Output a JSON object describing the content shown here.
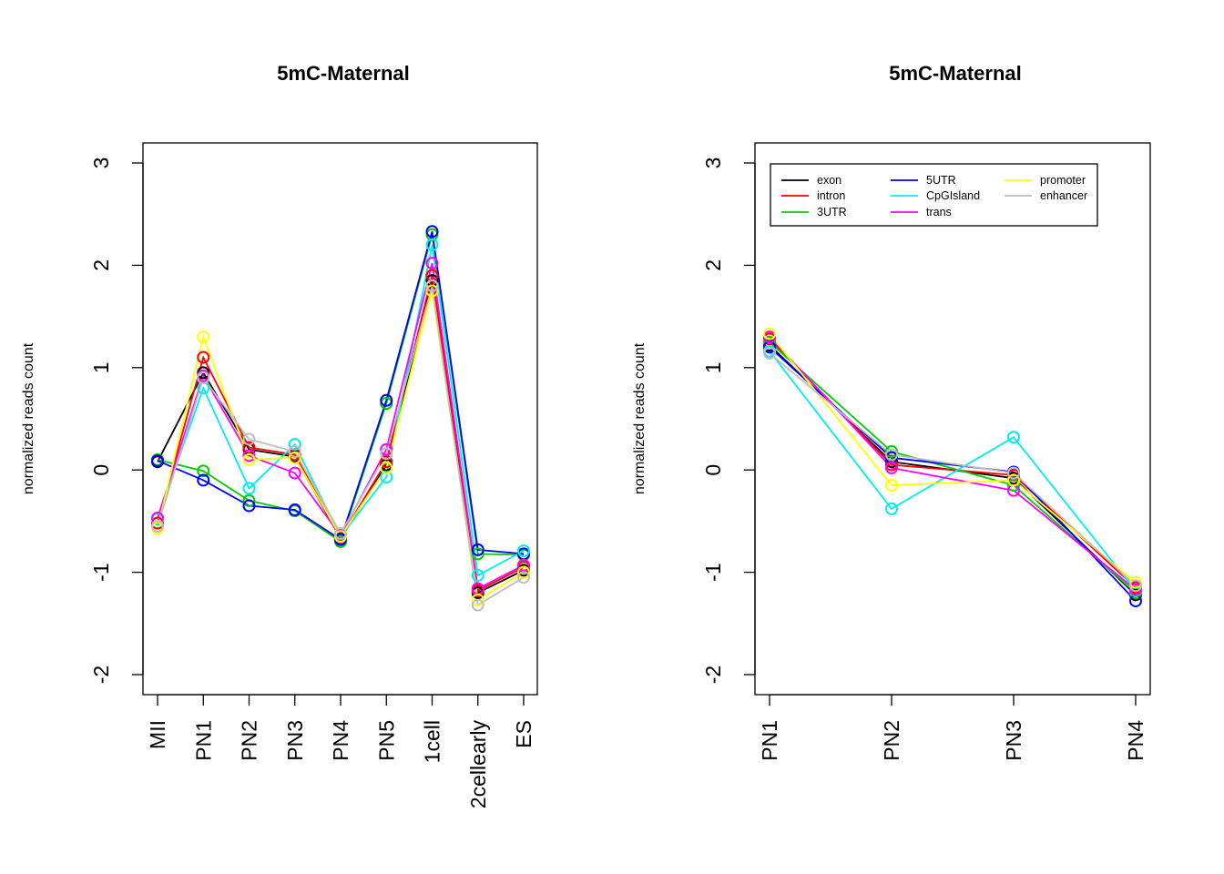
{
  "chart_data": [
    {
      "type": "line",
      "title": "5mC-Maternal",
      "xlabel": "",
      "ylabel": "normalized reads count",
      "categories": [
        "MII",
        "PN1",
        "PN2",
        "PN3",
        "PN4",
        "PN5",
        "1cell",
        "2cellearly",
        "ES"
      ],
      "yticks": [
        "-2",
        "-1",
        "0",
        "1",
        "2",
        "3"
      ],
      "ylim": [
        -2.2,
        3.2
      ],
      "grid": false,
      "series": [
        {
          "name": "exon",
          "color": "#000000",
          "values": [
            0.08,
            0.95,
            0.2,
            0.13,
            -0.67,
            0.05,
            1.85,
            -1.2,
            -0.98
          ]
        },
        {
          "name": "intron",
          "color": "#ff0000",
          "values": [
            -0.52,
            1.1,
            0.22,
            0.15,
            -0.66,
            0.08,
            1.9,
            -1.18,
            -0.95
          ]
        },
        {
          "name": "3UTR",
          "color": "#00cd00",
          "values": [
            0.1,
            -0.01,
            -0.3,
            -0.4,
            -0.7,
            0.65,
            2.3,
            -0.82,
            -0.83
          ]
        },
        {
          "name": "5UTR",
          "color": "#0000ff",
          "values": [
            0.09,
            -0.1,
            -0.35,
            -0.39,
            -0.68,
            0.68,
            2.33,
            -0.78,
            -0.82
          ]
        },
        {
          "name": "CpGIsland",
          "color": "#00eeee",
          "values": [
            -0.48,
            0.8,
            -0.18,
            0.25,
            -0.65,
            -0.07,
            2.2,
            -1.03,
            -0.79
          ]
        },
        {
          "name": "trans",
          "color": "#ff00ff",
          "values": [
            -0.47,
            0.92,
            0.14,
            -0.03,
            -0.64,
            0.2,
            2.02,
            -1.16,
            -0.93
          ]
        },
        {
          "name": "promoter",
          "color": "#ffff00",
          "values": [
            -0.57,
            1.3,
            0.1,
            0.12,
            -0.65,
            0.02,
            1.75,
            -1.27,
            -1.0
          ]
        },
        {
          "name": "enhancer",
          "color": "#bebebe",
          "values": [
            -0.55,
            0.9,
            0.3,
            0.18,
            -0.62,
            0.16,
            1.8,
            -1.32,
            -1.05
          ]
        }
      ]
    },
    {
      "type": "line",
      "title": "5mC-Maternal",
      "xlabel": "",
      "ylabel": "normalized reads count",
      "categories": [
        "PN1",
        "PN2",
        "PN3",
        "PN4"
      ],
      "yticks": [
        "-2",
        "-1",
        "0",
        "1",
        "2",
        "3"
      ],
      "ylim": [
        -2.2,
        3.2
      ],
      "grid": false,
      "legend_position": "top-left",
      "series": [
        {
          "name": "exon",
          "color": "#000000",
          "values": [
            1.22,
            0.08,
            -0.08,
            -1.22
          ]
        },
        {
          "name": "intron",
          "color": "#ff0000",
          "values": [
            1.28,
            0.05,
            -0.05,
            -1.15
          ]
        },
        {
          "name": "3UTR",
          "color": "#00cd00",
          "values": [
            1.25,
            0.18,
            -0.15,
            -1.2
          ]
        },
        {
          "name": "5UTR",
          "color": "#0000ff",
          "values": [
            1.2,
            0.12,
            -0.02,
            -1.28
          ]
        },
        {
          "name": "CpGIsland",
          "color": "#00eeee",
          "values": [
            1.16,
            -0.38,
            0.32,
            -1.18
          ]
        },
        {
          "name": "trans",
          "color": "#ff00ff",
          "values": [
            1.3,
            0.02,
            -0.2,
            -1.17
          ]
        },
        {
          "name": "promoter",
          "color": "#ffff00",
          "values": [
            1.33,
            -0.15,
            -0.1,
            -1.1
          ]
        },
        {
          "name": "enhancer",
          "color": "#bebebe",
          "values": [
            1.14,
            0.15,
            -0.03,
            -1.13
          ]
        }
      ]
    }
  ]
}
